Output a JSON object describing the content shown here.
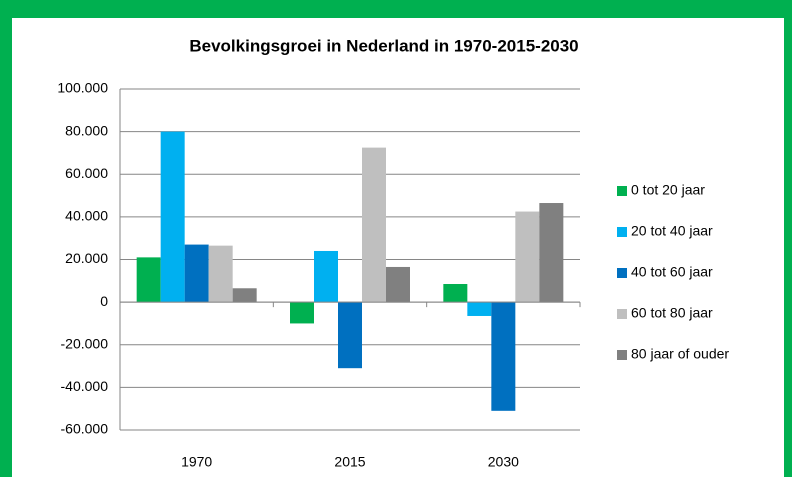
{
  "chart_data": {
    "type": "bar",
    "title": "Bevolkingsgroei in Nederland in 1970-2015-2030",
    "categories": [
      "1970",
      "2015",
      "2030"
    ],
    "series": [
      {
        "name": "0 tot 20 jaar",
        "color": "#00b050",
        "values": [
          21000,
          -10000,
          8500
        ]
      },
      {
        "name": "20 tot 40 jaar",
        "color": "#00b0f0",
        "values": [
          80000,
          24000,
          -6500
        ]
      },
      {
        "name": "40 tot 60 jaar",
        "color": "#0070c0",
        "values": [
          27000,
          -31000,
          -51000
        ]
      },
      {
        "name": "60 tot 80 jaar",
        "color": "#bfbfbf",
        "values": [
          26500,
          72500,
          42500
        ]
      },
      {
        "name": "80 jaar of ouder",
        "color": "#808080",
        "values": [
          6500,
          16500,
          46500
        ]
      }
    ],
    "ylim": [
      -60000,
      100000
    ],
    "yticks": [
      {
        "value": -60000,
        "label": "-60.000"
      },
      {
        "value": -40000,
        "label": "-40.000"
      },
      {
        "value": -20000,
        "label": "-20.000"
      },
      0,
      {
        "value": 20000,
        "label": "20.000"
      },
      {
        "value": 40000,
        "label": "40.000"
      },
      {
        "value": 60000,
        "label": "60.000"
      },
      {
        "value": 80000,
        "label": "80.000"
      },
      {
        "value": 100000,
        "label": "100.000"
      }
    ],
    "grid": true,
    "legend": "right"
  }
}
